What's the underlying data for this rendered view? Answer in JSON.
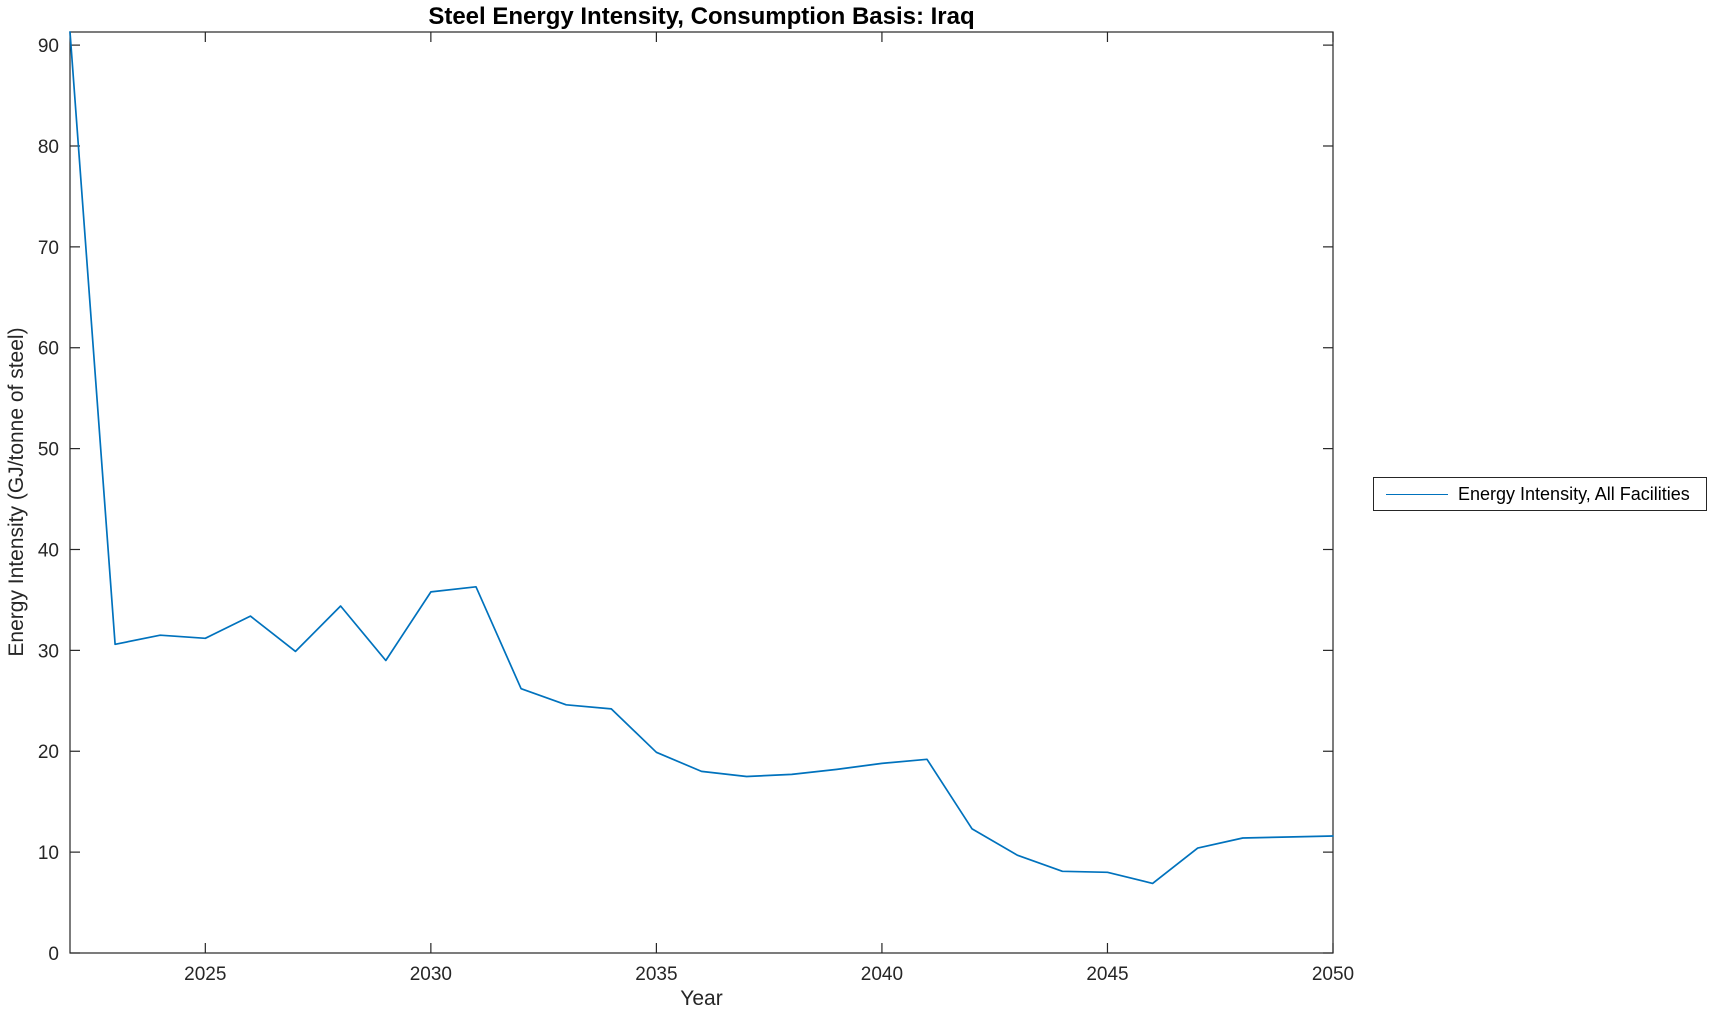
{
  "chart_data": {
    "type": "line",
    "title": "Steel Energy Intensity, Consumption Basis: Iraq",
    "xlabel": "Year",
    "ylabel": "Energy Intensity (GJ/tonne of steel)",
    "xlim": [
      2022,
      2050
    ],
    "ylim": [
      0,
      91.3
    ],
    "xticks": [
      2025,
      2030,
      2035,
      2040,
      2045,
      2050
    ],
    "yticks": [
      0,
      10,
      20,
      30,
      40,
      50,
      60,
      70,
      80,
      90
    ],
    "grid": false,
    "box": true,
    "tick_direction": "in",
    "legend_position": "outside-right",
    "axis_color": "#262626",
    "background_color": "#ffffff",
    "series": [
      {
        "name": "Energy Intensity, All Facilities",
        "color": "#0072BD",
        "x": [
          2022,
          2023,
          2024,
          2025,
          2026,
          2027,
          2028,
          2029,
          2030,
          2031,
          2032,
          2033,
          2034,
          2035,
          2036,
          2037,
          2038,
          2039,
          2040,
          2041,
          2042,
          2043,
          2044,
          2045,
          2046,
          2047,
          2048,
          2049,
          2050
        ],
        "y": [
          91.3,
          30.6,
          31.5,
          31.2,
          33.4,
          29.9,
          34.4,
          29.0,
          35.8,
          36.3,
          26.2,
          24.6,
          24.2,
          19.9,
          18.0,
          17.5,
          17.7,
          18.2,
          18.8,
          19.2,
          12.3,
          9.7,
          8.1,
          8.0,
          6.9,
          10.4,
          11.4,
          11.5,
          11.6
        ]
      }
    ]
  }
}
